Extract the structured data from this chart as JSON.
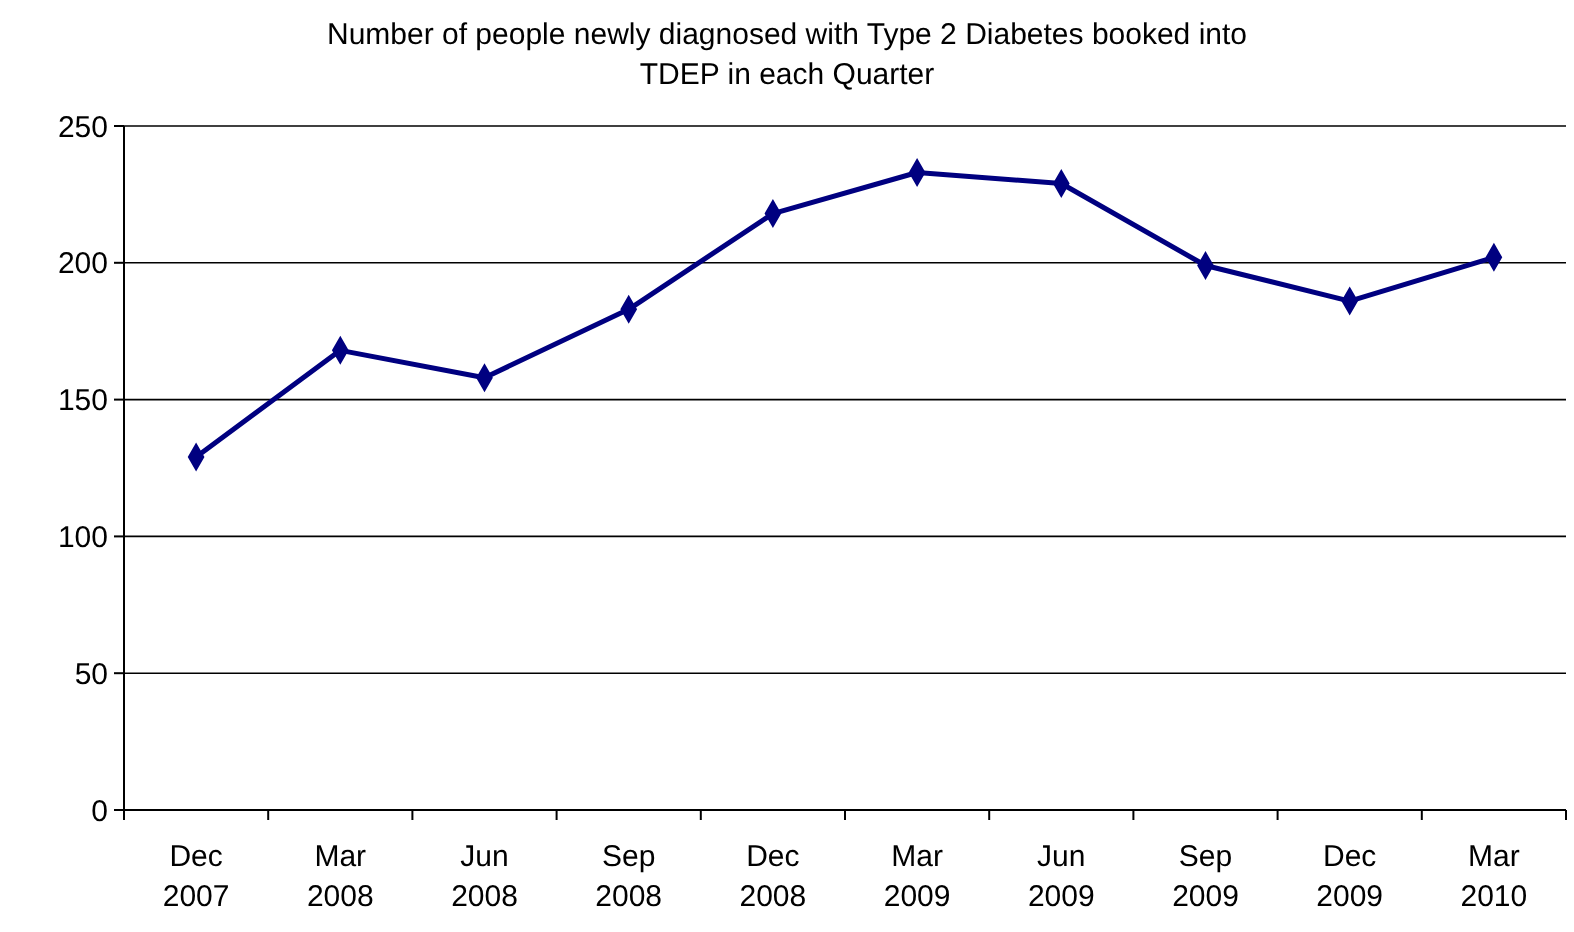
{
  "chart_data": {
    "type": "line",
    "title": "Number of people newly diagnosed with Type 2 Diabetes booked into TDEP in each Quarter",
    "categories": [
      "Dec 2007",
      "Mar 2008",
      "Jun 2008",
      "Sep 2008",
      "Dec 2008",
      "Mar 2009",
      "Jun 2009",
      "Sep 2009",
      "Dec 2009",
      "Mar 2010"
    ],
    "series": [
      {
        "color": "#000080",
        "values": [
          129,
          168,
          158,
          183,
          218,
          233,
          229,
          199,
          186,
          202
        ]
      }
    ],
    "ylim": [
      0,
      250
    ],
    "yticks": [
      0,
      50,
      100,
      150,
      200,
      250
    ],
    "grid": "y",
    "marker": "diamond",
    "line_style": "solid"
  }
}
